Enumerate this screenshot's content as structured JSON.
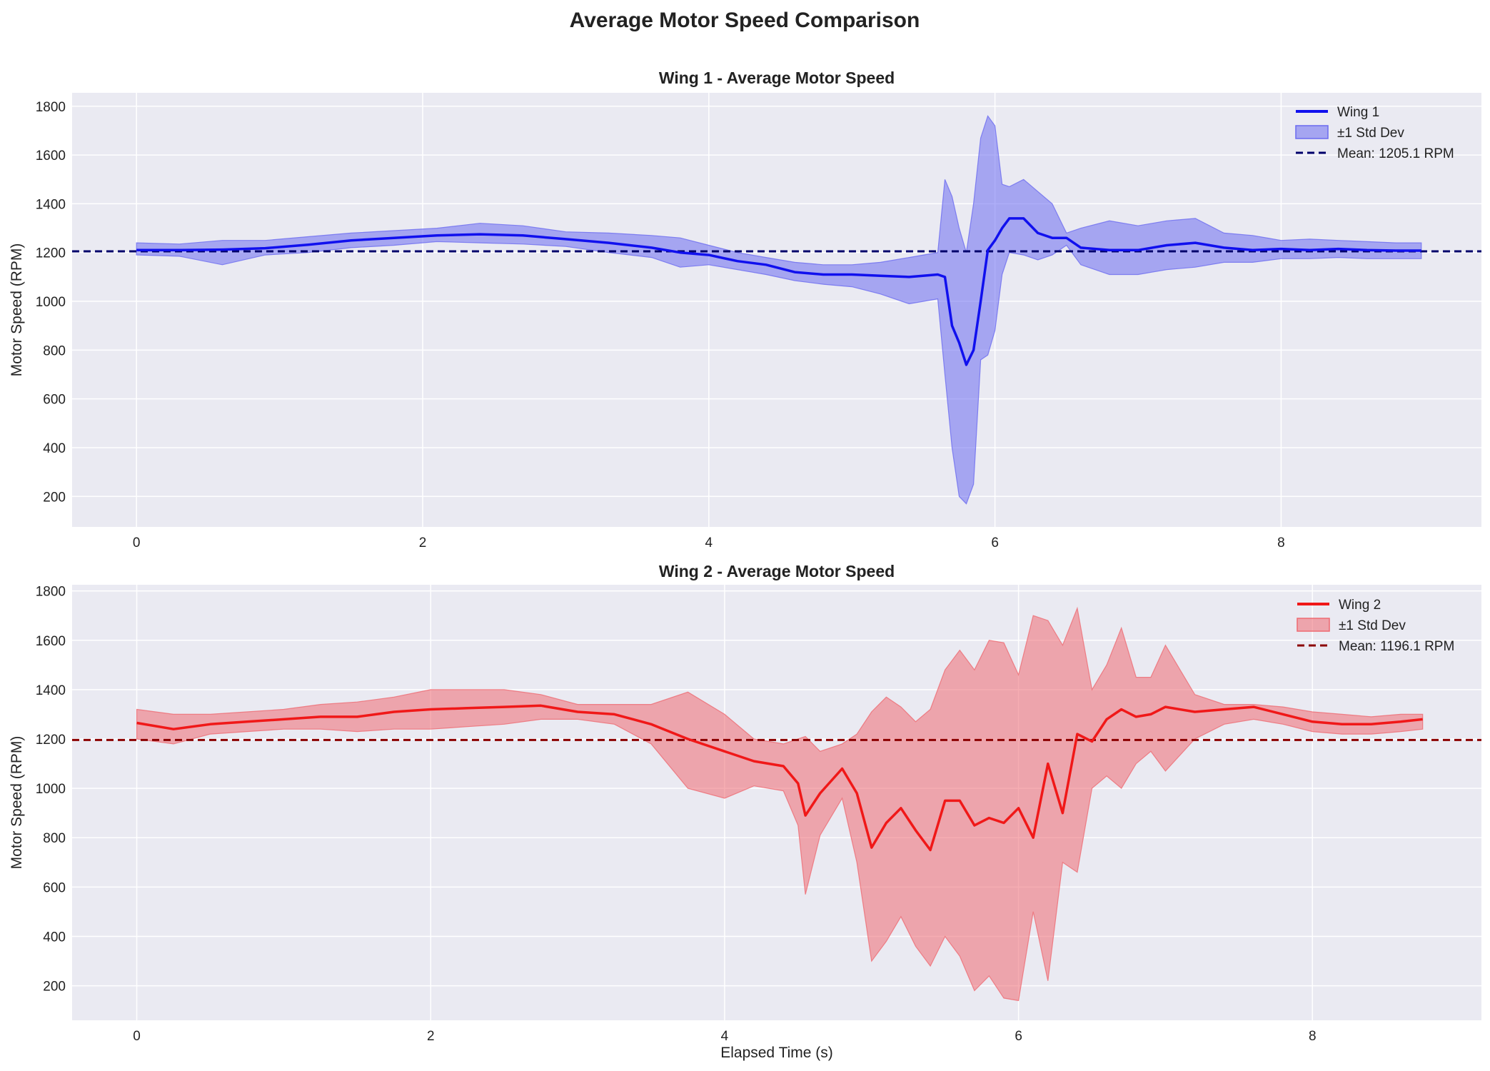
{
  "figure_title": "Average Motor Speed Comparison",
  "colors": {
    "wing1_line": "#1010ee",
    "wing1_band": "#6b6bf0",
    "wing1_mean": "#00006b",
    "wing2_line": "#f01818",
    "wing2_band": "#ee6a72",
    "wing2_mean": "#8b0000",
    "axes_bg": "#eaeaf2",
    "grid": "#ffffff"
  },
  "chart_data": [
    {
      "type": "line",
      "title": "Wing 1 - Average Motor Speed",
      "xlabel": "",
      "ylabel": "Motor Speed (RPM)",
      "xlim": [
        -0.45,
        9.4
      ],
      "ylim": [
        75,
        1855
      ],
      "xticks": [
        0,
        2,
        4,
        6,
        8
      ],
      "yticks": [
        200,
        400,
        600,
        800,
        1000,
        1200,
        1400,
        1600,
        1800
      ],
      "grid": true,
      "legend_position": "top-right",
      "legend": [
        "Wing 1",
        "±1 Std Dev",
        "Mean: 1205.1 RPM"
      ],
      "series": [
        {
          "name": "Wing 1",
          "x": [
            0,
            0.3,
            0.6,
            0.9,
            1.2,
            1.5,
            1.8,
            2.1,
            2.4,
            2.7,
            3.0,
            3.3,
            3.6,
            3.8,
            4.0,
            4.2,
            4.4,
            4.6,
            4.8,
            5.0,
            5.2,
            5.4,
            5.6,
            5.65,
            5.7,
            5.75,
            5.8,
            5.85,
            5.9,
            5.95,
            6.0,
            6.05,
            6.1,
            6.2,
            6.3,
            6.4,
            6.5,
            6.6,
            6.8,
            7.0,
            7.2,
            7.4,
            7.6,
            7.8,
            8.0,
            8.2,
            8.4,
            8.6,
            8.8,
            8.98
          ],
          "values": [
            1210,
            1210,
            1212,
            1218,
            1232,
            1250,
            1260,
            1270,
            1275,
            1270,
            1255,
            1240,
            1220,
            1200,
            1190,
            1165,
            1150,
            1120,
            1110,
            1110,
            1105,
            1100,
            1110,
            1100,
            900,
            830,
            740,
            800,
            1000,
            1210,
            1250,
            1300,
            1340,
            1340,
            1280,
            1260,
            1260,
            1220,
            1210,
            1210,
            1230,
            1240,
            1220,
            1210,
            1215,
            1210,
            1215,
            1210,
            1208,
            1208
          ],
          "std_upper": [
            1240,
            1235,
            1250,
            1250,
            1265,
            1280,
            1290,
            1300,
            1320,
            1310,
            1285,
            1280,
            1270,
            1260,
            1230,
            1200,
            1180,
            1160,
            1150,
            1150,
            1160,
            1180,
            1200,
            1500,
            1430,
            1300,
            1200,
            1400,
            1670,
            1760,
            1720,
            1480,
            1470,
            1500,
            1450,
            1400,
            1280,
            1300,
            1330,
            1310,
            1330,
            1340,
            1280,
            1270,
            1250,
            1255,
            1250,
            1245,
            1240,
            1240
          ],
          "std_lower": [
            1190,
            1185,
            1150,
            1190,
            1200,
            1220,
            1230,
            1245,
            1240,
            1235,
            1225,
            1200,
            1180,
            1140,
            1150,
            1130,
            1110,
            1085,
            1070,
            1060,
            1030,
            990,
            1010,
            700,
            400,
            200,
            170,
            250,
            760,
            780,
            880,
            1110,
            1200,
            1190,
            1170,
            1190,
            1230,
            1150,
            1110,
            1110,
            1130,
            1140,
            1160,
            1160,
            1175,
            1175,
            1180,
            1175,
            1175,
            1175
          ]
        }
      ],
      "mean": 1205.1
    },
    {
      "type": "line",
      "title": "Wing 2 - Average Motor Speed",
      "xlabel": "Elapsed Time (s)",
      "ylabel": "Motor Speed (RPM)",
      "xlim": [
        -0.44,
        9.15
      ],
      "ylim": [
        60,
        1825
      ],
      "xticks": [
        0,
        2,
        4,
        6,
        8
      ],
      "yticks": [
        200,
        400,
        600,
        800,
        1000,
        1200,
        1400,
        1600,
        1800
      ],
      "grid": true,
      "legend_position": "top-right",
      "legend": [
        "Wing 2",
        "±1 Std Dev",
        "Mean: 1196.1 RPM"
      ],
      "series": [
        {
          "name": "Wing 2",
          "x": [
            0,
            0.25,
            0.5,
            0.75,
            1.0,
            1.25,
            1.5,
            1.75,
            2.0,
            2.25,
            2.5,
            2.75,
            3.0,
            3.25,
            3.5,
            3.75,
            4.0,
            4.2,
            4.4,
            4.5,
            4.55,
            4.65,
            4.8,
            4.9,
            5.0,
            5.1,
            5.2,
            5.3,
            5.4,
            5.5,
            5.6,
            5.7,
            5.8,
            5.9,
            6.0,
            6.1,
            6.2,
            6.3,
            6.4,
            6.5,
            6.6,
            6.7,
            6.8,
            6.9,
            7.0,
            7.2,
            7.4,
            7.6,
            7.8,
            8.0,
            8.2,
            8.4,
            8.6,
            8.75
          ],
          "values": [
            1265,
            1240,
            1260,
            1270,
            1280,
            1290,
            1290,
            1310,
            1320,
            1325,
            1330,
            1335,
            1310,
            1300,
            1260,
            1200,
            1150,
            1110,
            1090,
            1020,
            890,
            980,
            1080,
            980,
            760,
            860,
            920,
            830,
            750,
            950,
            950,
            850,
            880,
            860,
            920,
            800,
            1100,
            900,
            1220,
            1190,
            1280,
            1320,
            1290,
            1300,
            1330,
            1310,
            1320,
            1330,
            1300,
            1270,
            1260,
            1260,
            1270,
            1280
          ],
          "std_upper": [
            1320,
            1300,
            1300,
            1310,
            1320,
            1340,
            1350,
            1370,
            1400,
            1400,
            1400,
            1380,
            1340,
            1340,
            1340,
            1390,
            1300,
            1200,
            1180,
            1200,
            1210,
            1150,
            1180,
            1220,
            1310,
            1370,
            1330,
            1270,
            1320,
            1480,
            1560,
            1480,
            1600,
            1590,
            1460,
            1700,
            1680,
            1580,
            1730,
            1400,
            1500,
            1650,
            1450,
            1450,
            1580,
            1380,
            1340,
            1340,
            1330,
            1310,
            1300,
            1290,
            1300,
            1300
          ],
          "std_lower": [
            1200,
            1180,
            1220,
            1230,
            1240,
            1240,
            1230,
            1240,
            1240,
            1250,
            1260,
            1280,
            1280,
            1260,
            1180,
            1000,
            960,
            1010,
            990,
            850,
            570,
            810,
            960,
            700,
            300,
            380,
            480,
            360,
            280,
            400,
            320,
            180,
            240,
            150,
            140,
            500,
            220,
            700,
            660,
            1000,
            1050,
            1000,
            1100,
            1150,
            1070,
            1200,
            1260,
            1280,
            1260,
            1230,
            1220,
            1220,
            1230,
            1240
          ]
        }
      ],
      "mean": 1196.1
    }
  ]
}
